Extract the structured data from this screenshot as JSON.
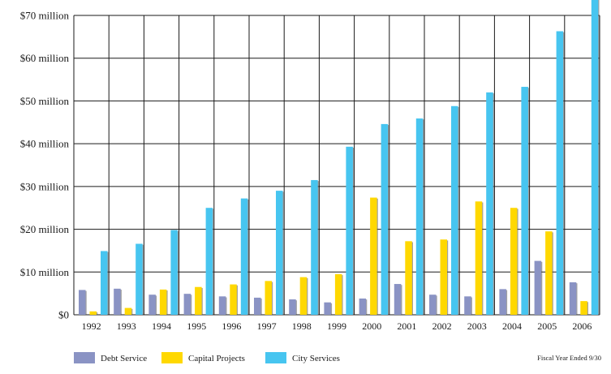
{
  "chart_data": {
    "type": "bar",
    "title": "",
    "xlabel": "",
    "ylabel": "",
    "categories": [
      "1992",
      "1993",
      "1994",
      "1995",
      "1996",
      "1997",
      "1998",
      "1999",
      "2000",
      "2001",
      "2002",
      "2003",
      "2004",
      "2005",
      "2006"
    ],
    "series": [
      {
        "name": "Debt Service",
        "color": "#8a93c4",
        "values": [
          5.8,
          6.1,
          4.7,
          4.9,
          4.3,
          4.0,
          3.6,
          2.9,
          3.8,
          7.2,
          4.7,
          4.3,
          6.0,
          12.6,
          7.6
        ]
      },
      {
        "name": "Capital Projects",
        "color": "#ffd800",
        "values": [
          0.8,
          1.6,
          5.9,
          6.5,
          7.1,
          7.9,
          8.8,
          9.5,
          27.4,
          17.2,
          17.6,
          26.5,
          25.0,
          19.5,
          3.2
        ]
      },
      {
        "name": "City Services",
        "color": "#47c5f0",
        "values": [
          14.9,
          16.6,
          19.8,
          25.0,
          27.2,
          29.0,
          31.5,
          39.3,
          44.6,
          45.9,
          48.8,
          52.0,
          53.3,
          66.3,
          75.0
        ]
      }
    ],
    "ylim": [
      0,
      70
    ],
    "yticks": [
      0,
      10,
      20,
      30,
      40,
      50,
      60,
      70
    ],
    "ytick_labels": [
      "$0",
      "$10 million",
      "$20 million",
      "$30 million",
      "$40 million",
      "$50 million",
      "$60 million",
      "$70 million"
    ],
    "grid": true,
    "legend_position": "bottom-left"
  },
  "footnote": "Fiscal Year Ended 9/30"
}
